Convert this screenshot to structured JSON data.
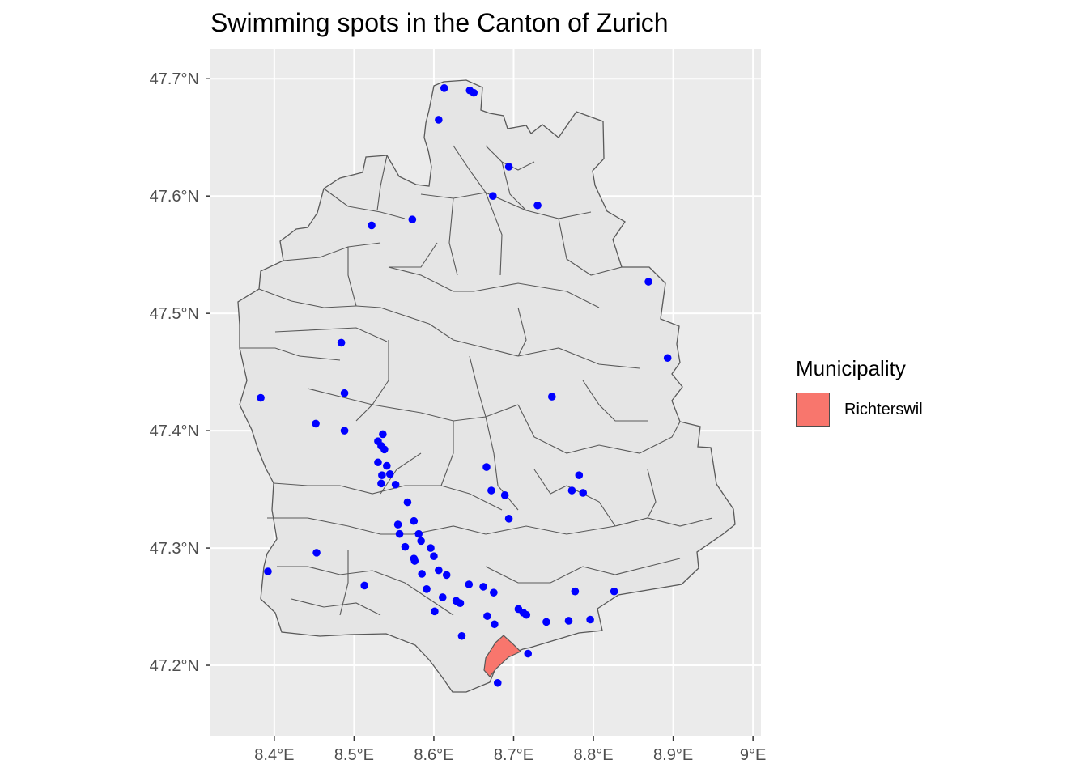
{
  "title": "Swimming spots in the Canton of Zurich",
  "chart_data": {
    "type": "scatter",
    "panel_background": "#ebebeb",
    "grid_color": "#ffffff",
    "region_fill": "#e5e5e5",
    "region_border": "#595959",
    "point_color": "#0000ff",
    "highlight_fill": "#f8766d",
    "x_ticks": [
      "8.4°E",
      "8.5°E",
      "8.6°E",
      "8.7°E",
      "8.8°E",
      "8.9°E",
      "9°E"
    ],
    "x_tick_values": [
      8.4,
      8.5,
      8.6,
      8.7,
      8.8,
      8.9,
      9.0
    ],
    "y_ticks": [
      "47.2°N",
      "47.3°N",
      "47.4°N",
      "47.5°N",
      "47.6°N",
      "47.7°N"
    ],
    "y_tick_values": [
      47.2,
      47.3,
      47.4,
      47.5,
      47.6,
      47.7
    ],
    "xlim": [
      8.32,
      9.01
    ],
    "ylim": [
      47.14,
      47.725
    ],
    "legend": {
      "title": "Municipality",
      "placement": "right",
      "entries": [
        {
          "label": "Richterswil",
          "color": "#f8766d"
        }
      ]
    },
    "points": [
      [
        8.613,
        47.692
      ],
      [
        8.645,
        47.69
      ],
      [
        8.65,
        47.688
      ],
      [
        8.606,
        47.665
      ],
      [
        8.694,
        47.625
      ],
      [
        8.674,
        47.6
      ],
      [
        8.73,
        47.592
      ],
      [
        8.522,
        47.575
      ],
      [
        8.573,
        47.58
      ],
      [
        8.869,
        47.527
      ],
      [
        8.893,
        47.462
      ],
      [
        8.484,
        47.475
      ],
      [
        8.488,
        47.432
      ],
      [
        8.383,
        47.428
      ],
      [
        8.452,
        47.406
      ],
      [
        8.488,
        47.4
      ],
      [
        8.53,
        47.391
      ],
      [
        8.536,
        47.397
      ],
      [
        8.534,
        47.387
      ],
      [
        8.538,
        47.384
      ],
      [
        8.53,
        47.373
      ],
      [
        8.541,
        47.37
      ],
      [
        8.545,
        47.363
      ],
      [
        8.535,
        47.362
      ],
      [
        8.534,
        47.355
      ],
      [
        8.552,
        47.354
      ],
      [
        8.666,
        47.369
      ],
      [
        8.672,
        47.349
      ],
      [
        8.689,
        47.345
      ],
      [
        8.694,
        47.325
      ],
      [
        8.748,
        47.429
      ],
      [
        8.782,
        47.362
      ],
      [
        8.773,
        47.349
      ],
      [
        8.787,
        47.347
      ],
      [
        8.567,
        47.339
      ],
      [
        8.575,
        47.323
      ],
      [
        8.555,
        47.32
      ],
      [
        8.557,
        47.312
      ],
      [
        8.581,
        47.312
      ],
      [
        8.584,
        47.306
      ],
      [
        8.596,
        47.3
      ],
      [
        8.6,
        47.293
      ],
      [
        8.564,
        47.301
      ],
      [
        8.575,
        47.291
      ],
      [
        8.576,
        47.289
      ],
      [
        8.606,
        47.281
      ],
      [
        8.585,
        47.278
      ],
      [
        8.616,
        47.277
      ],
      [
        8.644,
        47.269
      ],
      [
        8.662,
        47.267
      ],
      [
        8.675,
        47.262
      ],
      [
        8.591,
        47.265
      ],
      [
        8.611,
        47.258
      ],
      [
        8.628,
        47.255
      ],
      [
        8.633,
        47.253
      ],
      [
        8.601,
        47.246
      ],
      [
        8.706,
        47.248
      ],
      [
        8.712,
        47.245
      ],
      [
        8.716,
        47.243
      ],
      [
        8.667,
        47.242
      ],
      [
        8.741,
        47.237
      ],
      [
        8.769,
        47.238
      ],
      [
        8.796,
        47.239
      ],
      [
        8.777,
        47.263
      ],
      [
        8.826,
        47.263
      ],
      [
        8.676,
        47.235
      ],
      [
        8.635,
        47.225
      ],
      [
        8.718,
        47.21
      ],
      [
        8.392,
        47.28
      ],
      [
        8.453,
        47.296
      ],
      [
        8.513,
        47.268
      ],
      [
        8.68,
        47.185
      ]
    ]
  }
}
